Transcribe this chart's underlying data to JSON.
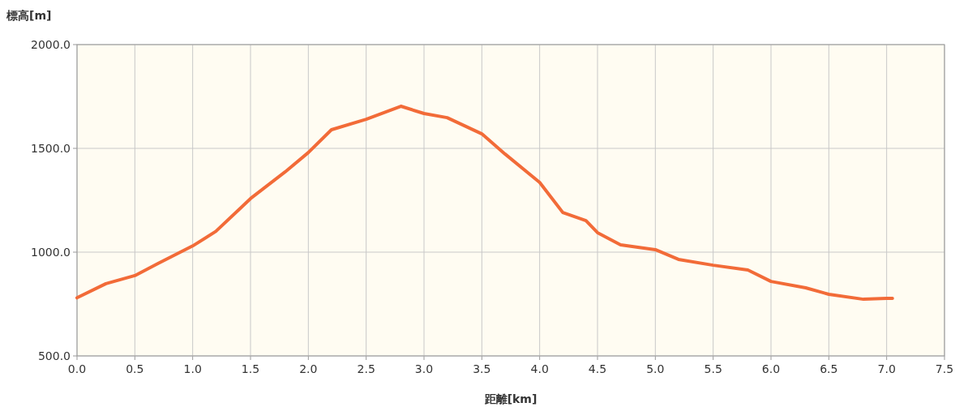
{
  "chart_data": {
    "type": "line",
    "xlabel": "距離[km]",
    "ylabel": "標高[m]",
    "xlim": [
      0,
      7.5
    ],
    "ylim": [
      500,
      2000
    ],
    "xticks": [
      {
        "value": 0,
        "label": "0.0"
      },
      {
        "value": 0.5,
        "label": "0.5"
      },
      {
        "value": 1,
        "label": "1.0"
      },
      {
        "value": 1.5,
        "label": "1.5"
      },
      {
        "value": 2,
        "label": "2.0"
      },
      {
        "value": 2.5,
        "label": "2.5"
      },
      {
        "value": 3,
        "label": "3.0"
      },
      {
        "value": 3.5,
        "label": "3.5"
      },
      {
        "value": 4,
        "label": "4.0"
      },
      {
        "value": 4.5,
        "label": "4.5"
      },
      {
        "value": 5,
        "label": "5.0"
      },
      {
        "value": 5.5,
        "label": "5.5"
      },
      {
        "value": 6,
        "label": "6.0"
      },
      {
        "value": 6.5,
        "label": "6.5"
      },
      {
        "value": 7,
        "label": "7.0"
      },
      {
        "value": 7.5,
        "label": "7.5"
      }
    ],
    "yticks": [
      {
        "value": 500,
        "label": "500.0"
      },
      {
        "value": 1000,
        "label": "1000.0"
      },
      {
        "value": 1500,
        "label": "1500.0"
      },
      {
        "value": 2000,
        "label": "2000.0"
      }
    ],
    "grid": true,
    "line_style": "solid",
    "series": [
      {
        "color": "#f26b38",
        "x": [
          0,
          0.25,
          0.5,
          0.7,
          1.0,
          1.2,
          1.4,
          1.5,
          1.8,
          2.0,
          2.2,
          2.5,
          2.8,
          3.0,
          3.2,
          3.5,
          3.7,
          4.0,
          4.2,
          4.4,
          4.5,
          4.7,
          5.0,
          5.2,
          5.5,
          5.8,
          6.0,
          6.3,
          6.5,
          6.8,
          7.0,
          7.05
        ],
        "values": [
          780,
          848,
          887,
          945,
          1030,
          1100,
          1205,
          1258,
          1387,
          1480,
          1590,
          1640,
          1703,
          1668,
          1648,
          1570,
          1473,
          1336,
          1191,
          1152,
          1094,
          1035,
          1012,
          965,
          937,
          914,
          859,
          828,
          797,
          773,
          777,
          777
        ]
      }
    ]
  }
}
